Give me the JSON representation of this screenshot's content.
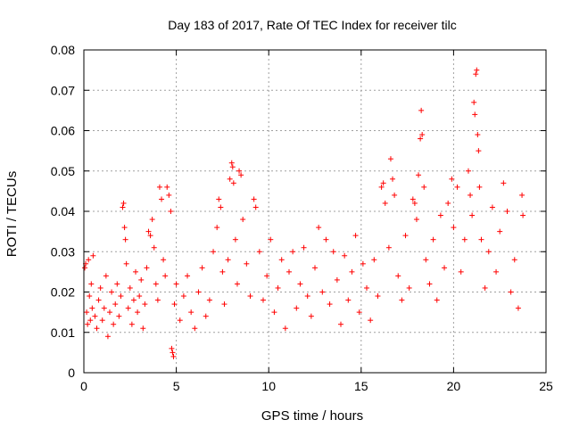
{
  "chart_data": {
    "type": "scatter",
    "title": "Day 183 of 2017, Rate Of TEC Index for receiver tilc",
    "xlabel": "GPS time / hours",
    "ylabel": "ROTI / TECUs",
    "xlim": [
      0,
      25
    ],
    "ylim": [
      0,
      0.08
    ],
    "xticks": [
      0,
      5,
      10,
      15,
      20,
      25
    ],
    "xtick_labels": [
      "0",
      "5",
      "10",
      "15",
      "20",
      "25"
    ],
    "yticks": [
      0,
      0.01,
      0.02,
      0.03,
      0.04,
      0.05,
      0.06,
      0.07,
      0.08
    ],
    "ytick_labels": [
      "0",
      "0.01",
      "0.02",
      "0.03",
      "0.04",
      "0.05",
      "0.06",
      "0.07",
      "0.08"
    ],
    "grid": true,
    "marker": "+",
    "color": "#ff0000",
    "series": [
      {
        "name": "ROTI",
        "points": [
          [
            0.05,
            0.026
          ],
          [
            0.1,
            0.027
          ],
          [
            0.15,
            0.015
          ],
          [
            0.2,
            0.012
          ],
          [
            0.25,
            0.028
          ],
          [
            0.3,
            0.019
          ],
          [
            0.35,
            0.013
          ],
          [
            0.4,
            0.022
          ],
          [
            0.45,
            0.016
          ],
          [
            0.5,
            0.029
          ],
          [
            0.6,
            0.014
          ],
          [
            0.7,
            0.011
          ],
          [
            0.8,
            0.018
          ],
          [
            0.9,
            0.021
          ],
          [
            1.0,
            0.013
          ],
          [
            1.1,
            0.016
          ],
          [
            1.2,
            0.024
          ],
          [
            1.3,
            0.009
          ],
          [
            1.4,
            0.015
          ],
          [
            1.5,
            0.02
          ],
          [
            1.6,
            0.012
          ],
          [
            1.7,
            0.017
          ],
          [
            1.8,
            0.022
          ],
          [
            1.9,
            0.014
          ],
          [
            2.0,
            0.019
          ],
          [
            2.1,
            0.041
          ],
          [
            2.15,
            0.042
          ],
          [
            2.2,
            0.036
          ],
          [
            2.25,
            0.033
          ],
          [
            2.3,
            0.027
          ],
          [
            2.4,
            0.016
          ],
          [
            2.5,
            0.021
          ],
          [
            2.6,
            0.012
          ],
          [
            2.7,
            0.018
          ],
          [
            2.8,
            0.025
          ],
          [
            2.9,
            0.015
          ],
          [
            3.0,
            0.019
          ],
          [
            3.1,
            0.023
          ],
          [
            3.2,
            0.011
          ],
          [
            3.3,
            0.017
          ],
          [
            3.4,
            0.026
          ],
          [
            3.5,
            0.035
          ],
          [
            3.6,
            0.034
          ],
          [
            3.7,
            0.038
          ],
          [
            3.8,
            0.031
          ],
          [
            3.9,
            0.022
          ],
          [
            4.0,
            0.018
          ],
          [
            4.1,
            0.046
          ],
          [
            4.2,
            0.043
          ],
          [
            4.3,
            0.028
          ],
          [
            4.4,
            0.024
          ],
          [
            4.5,
            0.046
          ],
          [
            4.6,
            0.044
          ],
          [
            4.7,
            0.04
          ],
          [
            4.75,
            0.006
          ],
          [
            4.8,
            0.005
          ],
          [
            4.85,
            0.004
          ],
          [
            4.9,
            0.017
          ],
          [
            5.0,
            0.022
          ],
          [
            5.2,
            0.013
          ],
          [
            5.4,
            0.019
          ],
          [
            5.6,
            0.024
          ],
          [
            5.8,
            0.015
          ],
          [
            6.0,
            0.011
          ],
          [
            6.2,
            0.02
          ],
          [
            6.4,
            0.026
          ],
          [
            6.6,
            0.014
          ],
          [
            6.8,
            0.018
          ],
          [
            7.0,
            0.03
          ],
          [
            7.2,
            0.036
          ],
          [
            7.3,
            0.043
          ],
          [
            7.4,
            0.041
          ],
          [
            7.5,
            0.025
          ],
          [
            7.6,
            0.017
          ],
          [
            7.8,
            0.028
          ],
          [
            7.9,
            0.048
          ],
          [
            8.0,
            0.052
          ],
          [
            8.05,
            0.051
          ],
          [
            8.1,
            0.047
          ],
          [
            8.2,
            0.033
          ],
          [
            8.3,
            0.022
          ],
          [
            8.4,
            0.05
          ],
          [
            8.5,
            0.049
          ],
          [
            8.6,
            0.038
          ],
          [
            8.8,
            0.027
          ],
          [
            9.0,
            0.019
          ],
          [
            9.2,
            0.043
          ],
          [
            9.3,
            0.041
          ],
          [
            9.5,
            0.03
          ],
          [
            9.7,
            0.018
          ],
          [
            9.9,
            0.024
          ],
          [
            10.1,
            0.033
          ],
          [
            10.3,
            0.015
          ],
          [
            10.5,
            0.021
          ],
          [
            10.7,
            0.028
          ],
          [
            10.9,
            0.011
          ],
          [
            11.1,
            0.025
          ],
          [
            11.3,
            0.03
          ],
          [
            11.5,
            0.016
          ],
          [
            11.7,
            0.022
          ],
          [
            11.9,
            0.031
          ],
          [
            12.1,
            0.019
          ],
          [
            12.3,
            0.014
          ],
          [
            12.5,
            0.026
          ],
          [
            12.7,
            0.036
          ],
          [
            12.9,
            0.02
          ],
          [
            13.1,
            0.033
          ],
          [
            13.3,
            0.017
          ],
          [
            13.5,
            0.03
          ],
          [
            13.7,
            0.023
          ],
          [
            13.9,
            0.012
          ],
          [
            14.1,
            0.029
          ],
          [
            14.3,
            0.018
          ],
          [
            14.5,
            0.025
          ],
          [
            14.7,
            0.034
          ],
          [
            14.9,
            0.015
          ],
          [
            15.1,
            0.027
          ],
          [
            15.3,
            0.021
          ],
          [
            15.5,
            0.013
          ],
          [
            15.7,
            0.028
          ],
          [
            15.9,
            0.019
          ],
          [
            16.1,
            0.046
          ],
          [
            16.2,
            0.047
          ],
          [
            16.3,
            0.042
          ],
          [
            16.5,
            0.031
          ],
          [
            16.6,
            0.053
          ],
          [
            16.7,
            0.048
          ],
          [
            16.8,
            0.044
          ],
          [
            17.0,
            0.024
          ],
          [
            17.2,
            0.018
          ],
          [
            17.4,
            0.034
          ],
          [
            17.6,
            0.021
          ],
          [
            17.8,
            0.043
          ],
          [
            17.9,
            0.042
          ],
          [
            18.0,
            0.038
          ],
          [
            18.1,
            0.049
          ],
          [
            18.2,
            0.058
          ],
          [
            18.25,
            0.065
          ],
          [
            18.3,
            0.059
          ],
          [
            18.4,
            0.046
          ],
          [
            18.5,
            0.028
          ],
          [
            18.7,
            0.022
          ],
          [
            18.9,
            0.033
          ],
          [
            19.1,
            0.018
          ],
          [
            19.3,
            0.039
          ],
          [
            19.5,
            0.026
          ],
          [
            19.7,
            0.042
          ],
          [
            19.9,
            0.048
          ],
          [
            20.0,
            0.036
          ],
          [
            20.2,
            0.046
          ],
          [
            20.4,
            0.025
          ],
          [
            20.6,
            0.033
          ],
          [
            20.8,
            0.05
          ],
          [
            20.9,
            0.044
          ],
          [
            21.0,
            0.039
          ],
          [
            21.1,
            0.067
          ],
          [
            21.15,
            0.064
          ],
          [
            21.2,
            0.074
          ],
          [
            21.25,
            0.075
          ],
          [
            21.3,
            0.059
          ],
          [
            21.35,
            0.055
          ],
          [
            21.4,
            0.046
          ],
          [
            21.5,
            0.033
          ],
          [
            21.7,
            0.021
          ],
          [
            21.9,
            0.03
          ],
          [
            22.1,
            0.041
          ],
          [
            22.3,
            0.025
          ],
          [
            22.5,
            0.035
          ],
          [
            22.7,
            0.047
          ],
          [
            22.9,
            0.04
          ],
          [
            23.1,
            0.02
          ],
          [
            23.3,
            0.028
          ],
          [
            23.5,
            0.016
          ],
          [
            23.7,
            0.044
          ],
          [
            23.75,
            0.039
          ]
        ]
      }
    ]
  }
}
